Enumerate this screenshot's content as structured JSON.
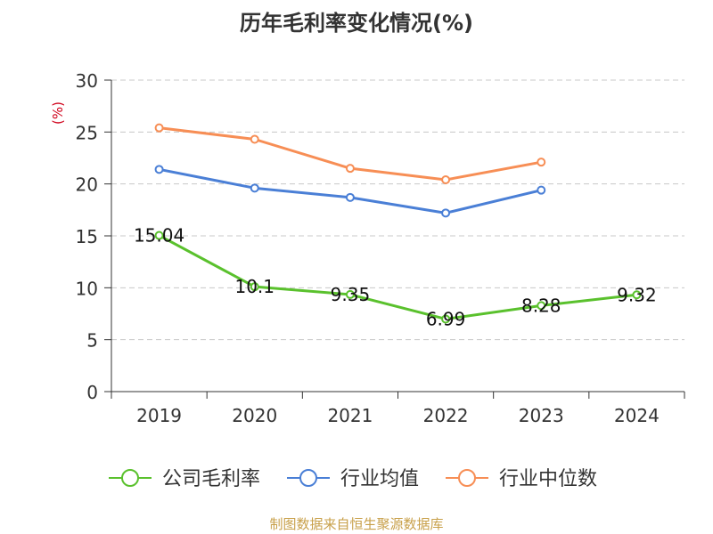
{
  "chart_data": {
    "type": "line",
    "title": "历年毛利率变化情况(%)",
    "ylabel": "(%)",
    "xlabel": "",
    "categories": [
      "2019",
      "2020",
      "2021",
      "2022",
      "2023",
      "2024"
    ],
    "ylim": [
      0,
      30
    ],
    "yticks": [
      "0",
      "5",
      "10",
      "15",
      "20",
      "25",
      "30"
    ],
    "grid": true,
    "legend_position": "bottom",
    "series": [
      {
        "name": "公司毛利率",
        "color": "#5ac12d",
        "values": [
          15.04,
          10.1,
          9.35,
          6.99,
          8.28,
          9.32
        ],
        "labels": [
          "15.04",
          "10.1",
          "9.35",
          "6.99",
          "8.28",
          "9.32"
        ]
      },
      {
        "name": "行业均值",
        "color": "#4a7fd6",
        "values": [
          21.4,
          19.6,
          18.7,
          17.2,
          19.4,
          null
        ]
      },
      {
        "name": "行业中位数",
        "color": "#f78e55",
        "values": [
          25.4,
          24.3,
          21.5,
          20.4,
          22.1,
          null
        ]
      }
    ]
  },
  "source": "制图数据来自恒生聚源数据库"
}
